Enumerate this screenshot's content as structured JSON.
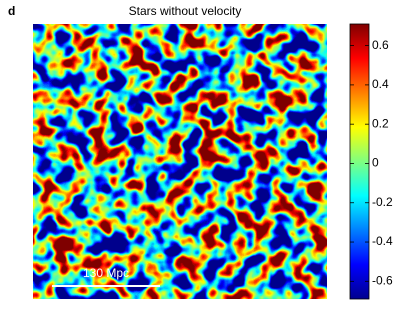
{
  "panel_label": "d",
  "chart_data": {
    "type": "heatmap",
    "title": "Stars without velocity",
    "colormap": "jet",
    "clim": [
      -0.69,
      0.71
    ],
    "colorbar_ticks": [
      0.6,
      0.4,
      0.2,
      0,
      -0.2,
      -0.4,
      -0.6
    ],
    "annotation": "130 Mpc"
  }
}
